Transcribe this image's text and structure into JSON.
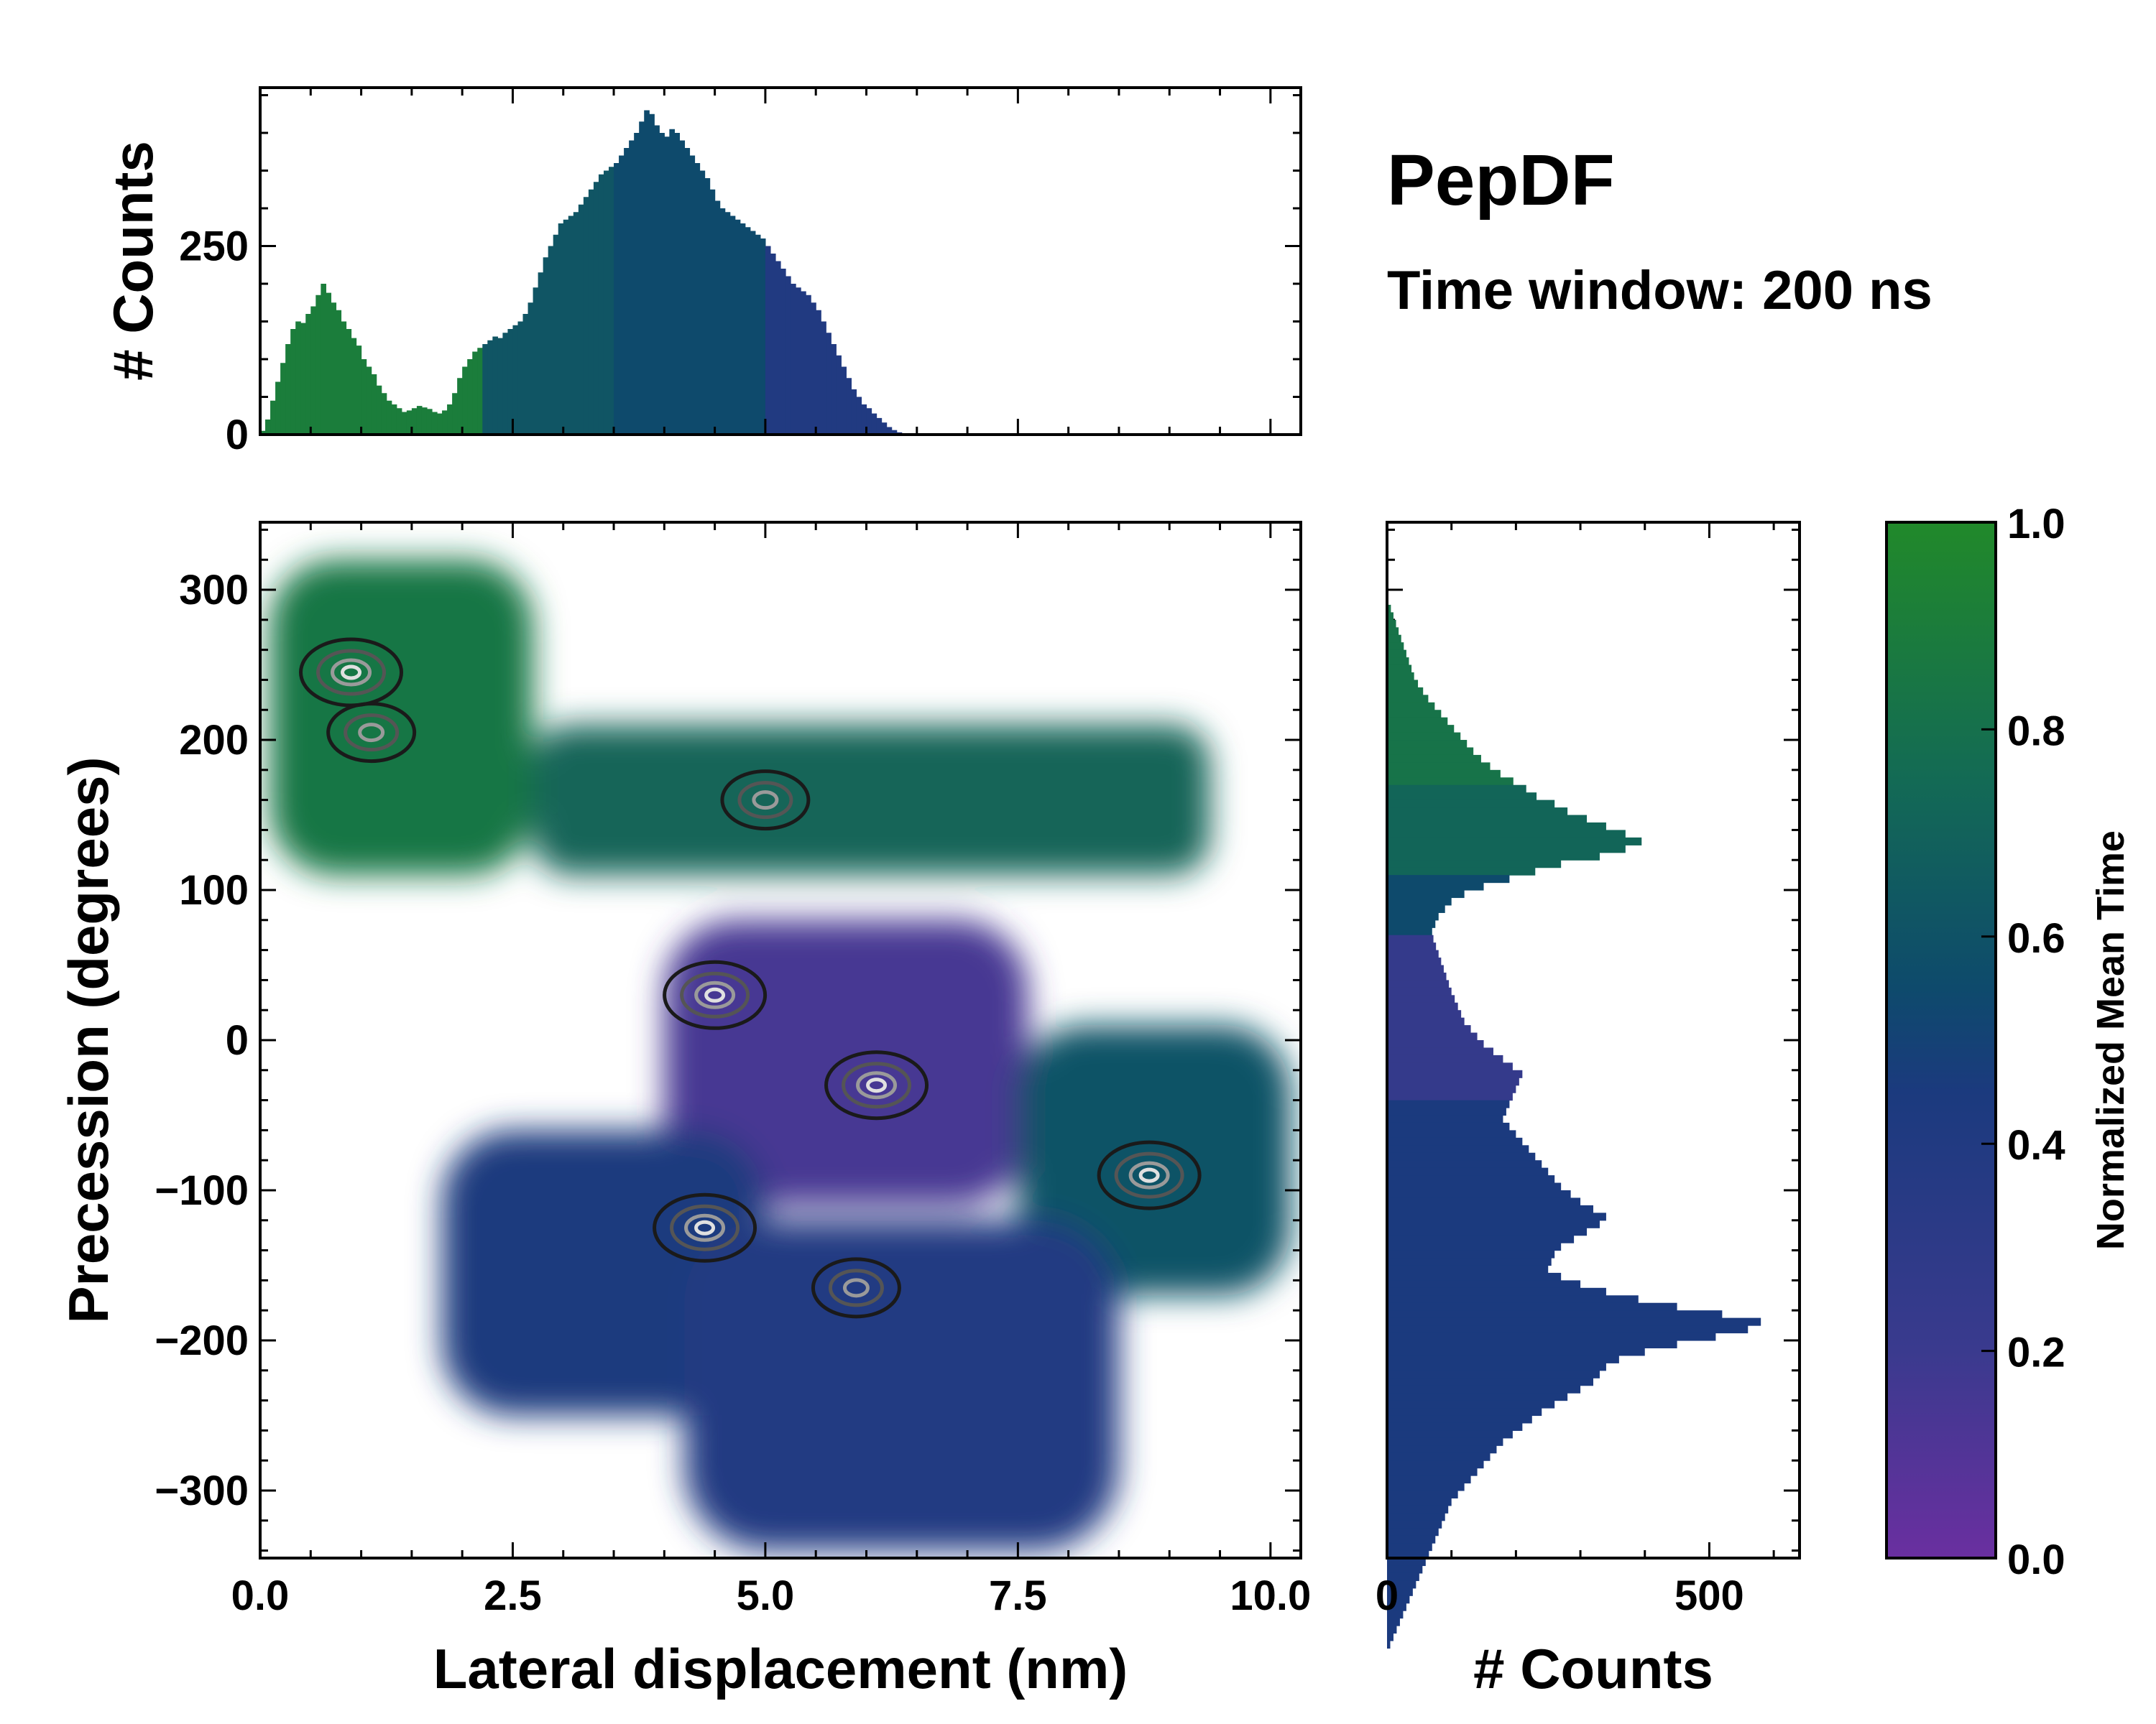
{
  "figure": {
    "title": "PepDF",
    "subtitle": "Time window: 200 ns"
  },
  "chart_data": [
    {
      "id": "joint",
      "type": "heatmap",
      "xlabel": "Lateral displacement (nm)",
      "ylabel": "Precession (degrees)",
      "xlim": [
        0,
        10.3
      ],
      "ylim": [
        -345,
        345
      ],
      "xticks": [
        0.0,
        2.5,
        5.0,
        7.5,
        10.0
      ],
      "xtick_labels": [
        "0.0",
        "2.5",
        "5.0",
        "7.5",
        "10.0"
      ],
      "yticks": [
        300,
        200,
        100,
        0,
        -100,
        -200,
        -300
      ],
      "ytick_labels": [
        "300",
        "200",
        "100",
        "0",
        "−100",
        "−200",
        "−300"
      ],
      "color_variable": "Normalized Mean Time",
      "regions": [
        {
          "name": "upper-left lobe",
          "x": [
            0.1,
            2.7
          ],
          "y": [
            110,
            320
          ],
          "value": 0.85
        },
        {
          "name": "upper band",
          "x": [
            2.7,
            9.4
          ],
          "y": [
            110,
            210
          ],
          "value": 0.72
        },
        {
          "name": "central basin",
          "x": [
            4.0,
            7.6
          ],
          "y": [
            -110,
            80
          ],
          "value": 0.15
        },
        {
          "name": "right lobe",
          "x": [
            7.5,
            10.2
          ],
          "y": [
            -170,
            10
          ],
          "value": 0.6
        },
        {
          "name": "lower-left lobe",
          "x": [
            1.8,
            5.0
          ],
          "y": [
            -250,
            -60
          ],
          "value": 0.45
        },
        {
          "name": "bottom lobe",
          "x": [
            4.2,
            8.5
          ],
          "y": [
            -340,
            -120
          ],
          "value": 0.38
        }
      ],
      "density_peaks": [
        {
          "x": 0.9,
          "y": 245,
          "level": "high"
        },
        {
          "x": 1.1,
          "y": 205,
          "level": "medium"
        },
        {
          "x": 4.5,
          "y": 30,
          "level": "high"
        },
        {
          "x": 6.1,
          "y": -30,
          "level": "high"
        },
        {
          "x": 4.4,
          "y": -125,
          "level": "high"
        },
        {
          "x": 5.9,
          "y": -165,
          "level": "medium"
        },
        {
          "x": 8.8,
          "y": -90,
          "level": "high"
        },
        {
          "x": 5.0,
          "y": 160,
          "level": "medium"
        }
      ]
    },
    {
      "id": "marginal-x",
      "type": "bar",
      "ylabel": "# Counts",
      "yticks": [
        0,
        250
      ],
      "ytick_labels": [
        "0",
        "250"
      ],
      "ylim": [
        0,
        460
      ],
      "x_bin_start": 0,
      "x_bin_width": 0.05,
      "values": [
        5,
        20,
        45,
        70,
        95,
        120,
        140,
        150,
        148,
        160,
        170,
        185,
        200,
        188,
        175,
        165,
        150,
        140,
        128,
        118,
        100,
        90,
        80,
        65,
        55,
        45,
        40,
        35,
        30,
        32,
        35,
        38,
        36,
        34,
        30,
        28,
        32,
        40,
        55,
        75,
        90,
        100,
        110,
        115,
        120,
        125,
        130,
        128,
        135,
        140,
        145,
        150,
        160,
        175,
        195,
        215,
        235,
        250,
        265,
        280,
        285,
        290,
        295,
        305,
        315,
        325,
        335,
        345,
        350,
        355,
        360,
        370,
        380,
        390,
        400,
        415,
        430,
        425,
        410,
        400,
        395,
        405,
        400,
        390,
        380,
        370,
        360,
        350,
        340,
        325,
        310,
        300,
        295,
        290,
        285,
        280,
        275,
        270,
        265,
        260,
        250,
        240,
        230,
        220,
        210,
        200,
        195,
        190,
        185,
        175,
        165,
        150,
        135,
        120,
        105,
        90,
        75,
        60,
        50,
        40,
        35,
        28,
        22,
        16,
        10,
        6,
        3,
        1,
        0,
        0
      ]
    },
    {
      "id": "marginal-y",
      "type": "bar",
      "xlabel": "# Counts",
      "xticks": [
        0,
        500
      ],
      "xtick_labels": [
        "0",
        "500"
      ],
      "xlim": [
        0,
        640
      ],
      "y_bin_start": 345,
      "y_bin_width": 5,
      "values": [
        0,
        0,
        0,
        0,
        0,
        0,
        0,
        0,
        0,
        0,
        2,
        6,
        10,
        14,
        18,
        22,
        26,
        30,
        34,
        38,
        42,
        48,
        56,
        64,
        74,
        84,
        94,
        104,
        114,
        124,
        134,
        146,
        160,
        176,
        196,
        216,
        232,
        260,
        280,
        310,
        340,
        370,
        395,
        370,
        330,
        270,
        230,
        190,
        150,
        120,
        100,
        90,
        80,
        75,
        70,
        72,
        76,
        80,
        84,
        88,
        92,
        96,
        100,
        105,
        110,
        115,
        120,
        130,
        140,
        150,
        165,
        180,
        195,
        210,
        205,
        200,
        195,
        190,
        185,
        180,
        190,
        200,
        210,
        220,
        230,
        240,
        250,
        260,
        270,
        285,
        300,
        320,
        340,
        330,
        310,
        290,
        270,
        260,
        255,
        250,
        270,
        300,
        340,
        390,
        450,
        520,
        580,
        560,
        510,
        450,
        400,
        360,
        340,
        330,
        320,
        300,
        280,
        260,
        240,
        225,
        210,
        195,
        180,
        170,
        160,
        150,
        140,
        130,
        120,
        110,
        100,
        95,
        90,
        85,
        80,
        75,
        70,
        65,
        60,
        55,
        50,
        45,
        40,
        35,
        30,
        25,
        20,
        15,
        10,
        5
      ]
    },
    {
      "id": "colorbar",
      "type": "colorbar",
      "label": "Normalized Mean Time",
      "range": [
        0.0,
        1.0
      ],
      "ticks": [
        0.0,
        0.2,
        0.4,
        0.6,
        0.8,
        1.0
      ],
      "tick_labels": [
        "0.0",
        "0.2",
        "0.4",
        "0.6",
        "0.8",
        "1.0"
      ],
      "colormap": [
        "#6a2fa0",
        "#3a3a8e",
        "#1b3a7e",
        "#0e4a6c",
        "#136a55",
        "#21892a"
      ]
    }
  ]
}
